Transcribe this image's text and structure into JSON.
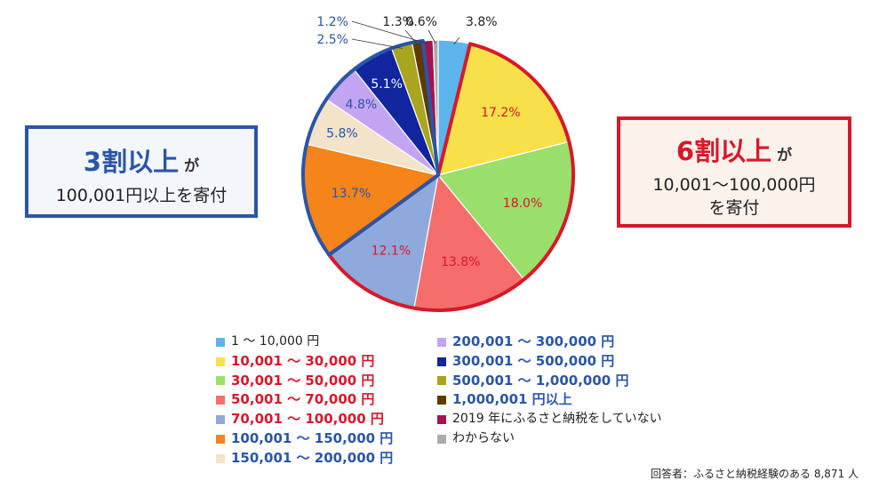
{
  "chart_data": {
    "type": "pie",
    "categories": [
      "1 〜 10,000 円",
      "10,001 〜 30,000 円",
      "30,001 〜 50,000 円",
      "50,001 〜 70,000 円",
      "70,001 〜 100,000 円",
      "100,001 〜 150,000 円",
      "150,001 〜 200,000 円",
      "200,001 〜 300,000 円",
      "300,001 〜 500,000 円",
      "500,001 〜 1,000,000 円",
      "1,000,001 円以上",
      "2019 年にふるさと納税をしていない",
      "わからない"
    ],
    "values": [
      3.8,
      17.2,
      18.0,
      13.8,
      12.1,
      13.7,
      5.8,
      4.8,
      5.1,
      2.5,
      1.3,
      1.2,
      0.6
    ],
    "value_labels": [
      "3.8%",
      "17.2%",
      "18.0%",
      "13.8%",
      "12.1%",
      "13.7%",
      "5.8%",
      "4.8%",
      "5.1%",
      "2.5%",
      "1.3%",
      "1.2%",
      "0.6%"
    ],
    "colors": [
      "#5bb4ea",
      "#f7e04a",
      "#9ade6c",
      "#f56e6b",
      "#8ea9dc",
      "#f5841a",
      "#f3e3c8",
      "#c3a4f2",
      "#10259e",
      "#a9a51e",
      "#5e3a08",
      "#a6124f",
      "#ababab"
    ],
    "label_colors": [
      "#222222",
      "#d7182a",
      "#d7182a",
      "#d7182a",
      "#d7182a",
      "#2a55a8",
      "#2a55a8",
      "#2a55a8",
      "#ffffff",
      "#2a55a8",
      "#222222",
      "#2a55a8",
      "#222222"
    ],
    "legend_colors": [
      "black",
      "red",
      "red",
      "red",
      "red",
      "blue",
      "blue",
      "blue",
      "blue",
      "blue",
      "blue",
      "black",
      "black"
    ],
    "groups": [
      {
        "slices": [
          1,
          2,
          3,
          4
        ],
        "outline": "#d7182a",
        "name": "6割以上"
      },
      {
        "slices": [
          5,
          6,
          7,
          8,
          9,
          10
        ],
        "outline": "#2a55a8",
        "name": "3割以上"
      }
    ],
    "legend_placement": "bottom"
  },
  "callouts": {
    "left": {
      "big": "3割以上",
      "particle": "が",
      "sub": "100,001円以上を寄付"
    },
    "right": {
      "big": "6割以上",
      "particle": "が",
      "sub1": "10,001〜100,000円",
      "sub2": "を寄付"
    }
  },
  "footnote": "回答者：ふるさと納税経験のある 8,871 人"
}
